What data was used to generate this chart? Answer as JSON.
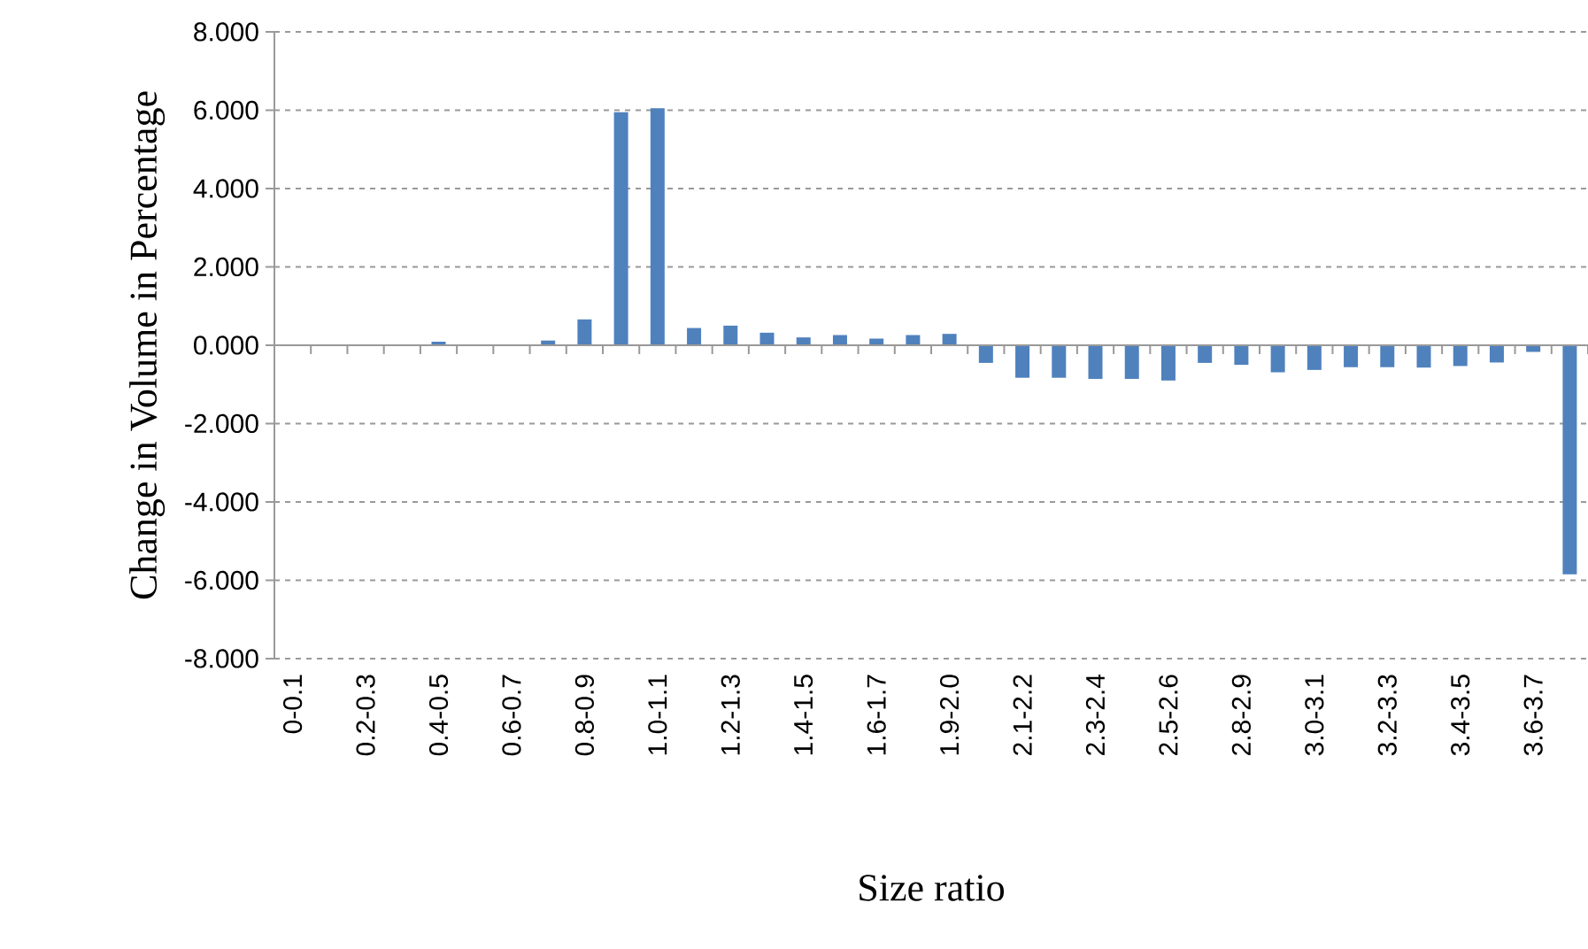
{
  "chart_data": {
    "type": "bar",
    "xlabel": "Size ratio",
    "ylabel": "Change in Volume in Percentage",
    "categories": [
      "0-0.1",
      null,
      "0.2-0.3",
      null,
      "0.4-0.5",
      null,
      "0.6-0.7",
      null,
      "0.8-0.9",
      null,
      "1.0-1.1",
      null,
      "1.2-1.3",
      null,
      "1.4-1.5",
      null,
      "1.6-1.7",
      null,
      "1.9-2.0",
      null,
      "2.1-2.2",
      null,
      "2.3-2.4",
      null,
      "2.5-2.6",
      null,
      "2.8-2.9",
      null,
      "3.0-3.1",
      null,
      "3.2-3.3",
      null,
      "3.4-3.5",
      null,
      "3.6-3.7",
      null
    ],
    "values": [
      0.01,
      0.01,
      0,
      0,
      0.09,
      0.01,
      0,
      0.12,
      0.66,
      5.95,
      6.05,
      0.44,
      0.5,
      0.32,
      0.2,
      0.26,
      0.17,
      0.26,
      0.29,
      -0.45,
      -0.83,
      -0.83,
      -0.86,
      -0.86,
      -0.9,
      -0.45,
      -0.5,
      -0.69,
      -0.63,
      -0.56,
      -0.56,
      -0.57,
      -0.53,
      -0.44,
      -0.17,
      -5.85
    ],
    "color": "#4f81bd",
    "ylim": [
      -8,
      8
    ],
    "yticks": [
      {
        "value": -8,
        "label": "-8.000"
      },
      {
        "value": -6,
        "label": "-6.000"
      },
      {
        "value": -4,
        "label": "-4.000"
      },
      {
        "value": -2,
        "label": "-2.000"
      },
      {
        "value": 0,
        "label": "0.000"
      },
      {
        "value": 2,
        "label": "2.000"
      },
      {
        "value": 4,
        "label": "4.000"
      },
      {
        "value": 6,
        "label": "6.000"
      },
      {
        "value": 8,
        "label": "8.000"
      }
    ],
    "grid": "y"
  }
}
